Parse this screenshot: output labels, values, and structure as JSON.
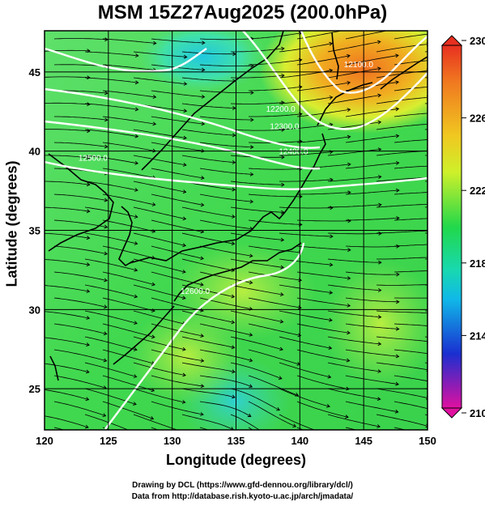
{
  "title": "MSM 15Z27Aug2025 (200.0hPa)",
  "x_axis": {
    "label": "Longitude (degrees)",
    "ticks": [
      "120",
      "125",
      "130",
      "135",
      "140",
      "145",
      "150"
    ],
    "range": [
      120,
      150
    ]
  },
  "y_axis": {
    "label": "Latitude  (degrees)",
    "ticks": [
      "25",
      "30",
      "35",
      "40",
      "45"
    ],
    "range": [
      22.4,
      47.6
    ]
  },
  "colorbar": {
    "ticks": [
      "230",
      "226",
      "222",
      "218",
      "214",
      "210"
    ],
    "range": [
      210,
      230
    ],
    "colors": [
      "#e0109a",
      "#1a2fd0",
      "#10b8e8",
      "#22d84a",
      "#d8ee22",
      "#f0a020",
      "#e83020"
    ]
  },
  "contours": [
    {
      "label": "12500.0",
      "lon": 123.8,
      "lat": 39.4
    },
    {
      "label": "12400.0",
      "lon": 139.5,
      "lat": 39.8
    },
    {
      "label": "12300.0",
      "lon": 138.8,
      "lat": 41.4
    },
    {
      "label": "12200.0",
      "lon": 138.5,
      "lat": 42.5
    },
    {
      "label": "12100.0",
      "lon": 144.6,
      "lat": 45.3
    },
    {
      "label": "12600.0",
      "lon": 131.8,
      "lat": 31.0
    }
  ],
  "footer": {
    "line1": "Drawing by DCL (https://www.gfd-dennou.org/library/dcl/)",
    "line2": "Data from http://database.rish.kyoto-u.ac.jp/arch/jmadata/"
  }
}
